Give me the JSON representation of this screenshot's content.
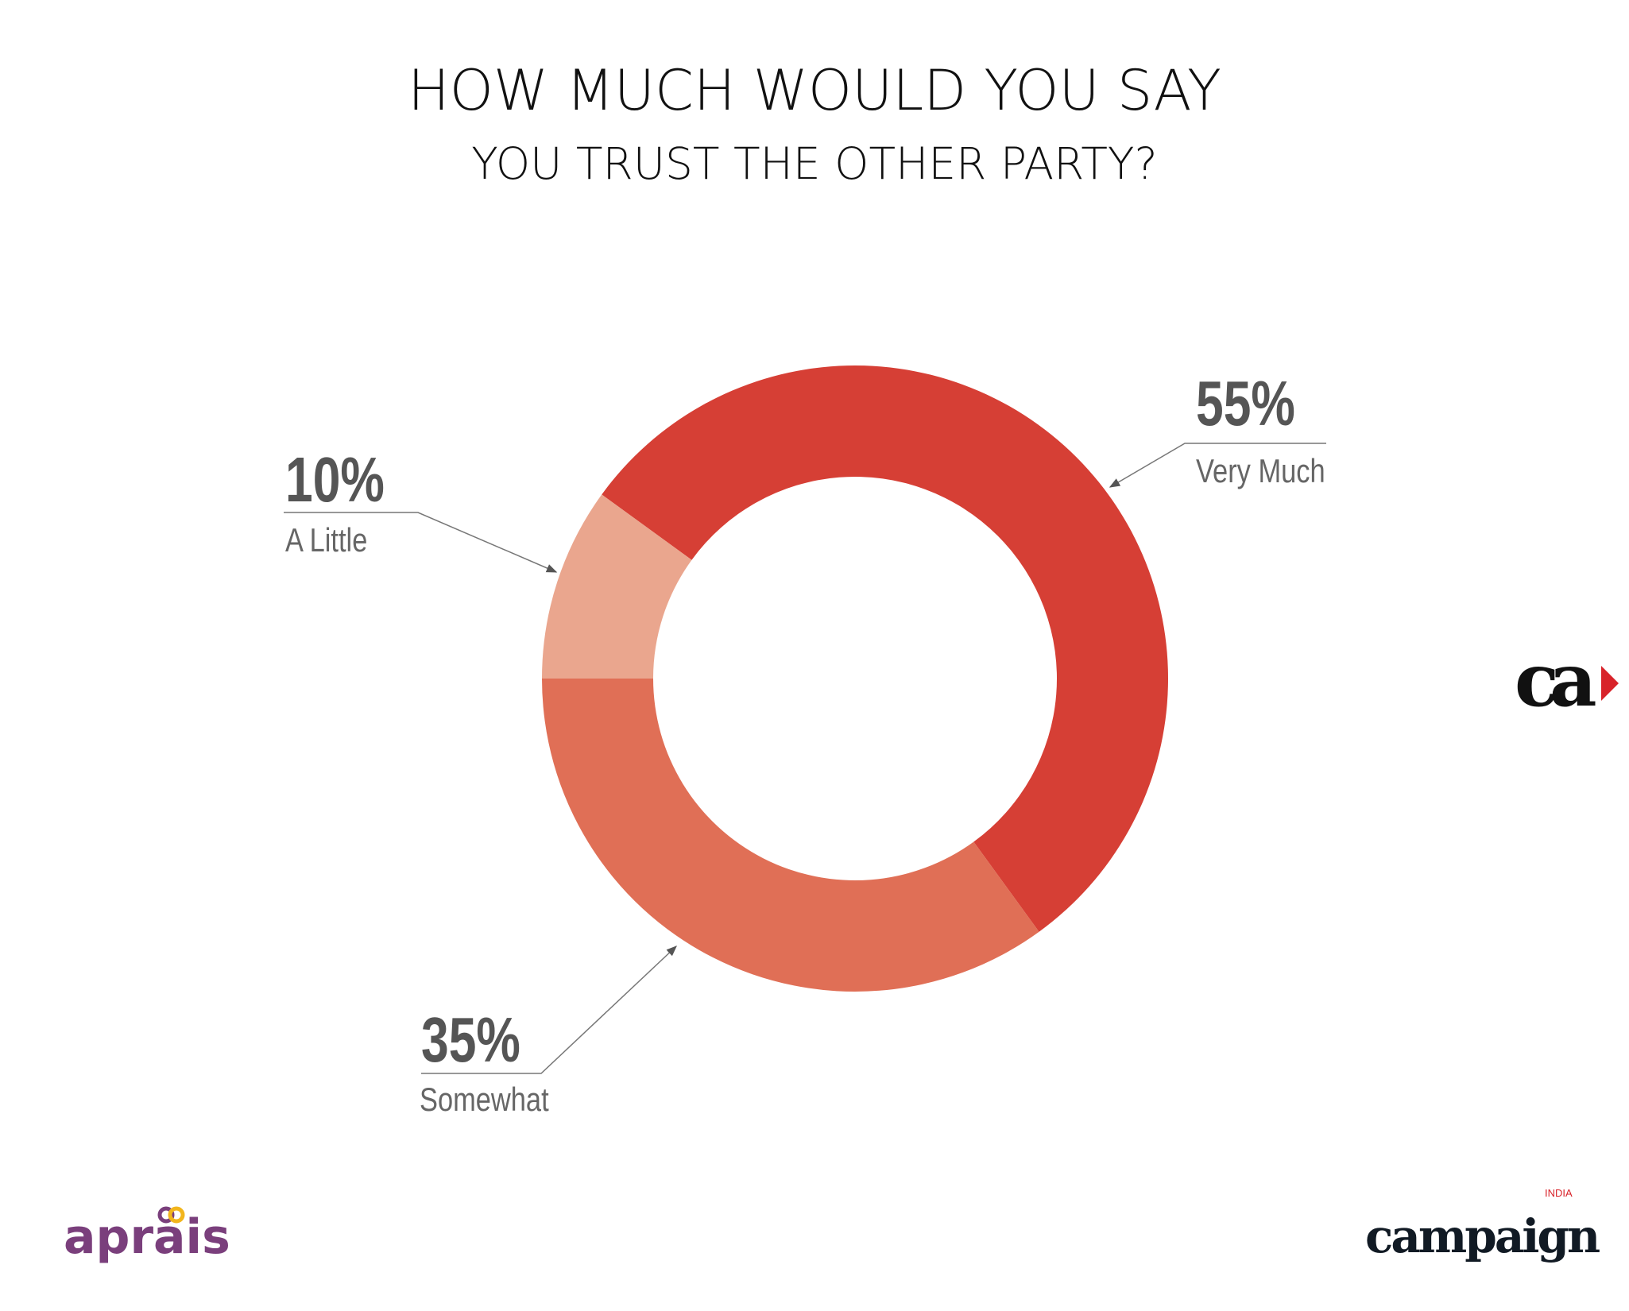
{
  "chart_data": {
    "type": "pie",
    "variant": "donut",
    "title": "HOW MUCH WOULD YOU SAY",
    "subtitle": "YOU TRUST THE OTHER PARTY?",
    "slices": [
      {
        "label": "Very Much",
        "value": 55,
        "display": "55%",
        "color": "#d63f35"
      },
      {
        "label": "Somewhat",
        "value": 35,
        "display": "35%",
        "color": "#e06f56"
      },
      {
        "label": "A Little",
        "value": 10,
        "display": "10%",
        "color": "#eaa68e"
      }
    ],
    "start_angle_deg": 306,
    "direction": "clockwise"
  },
  "logos": {
    "top_right": "ca",
    "bottom_left": "aprais",
    "bottom_right": "campaign",
    "bottom_right_tag": "INDIA"
  },
  "colors": {
    "aprais_purple": "#7a3f7c",
    "aprais_gold": "#f2b51c",
    "brand_red": "#d8232a"
  }
}
